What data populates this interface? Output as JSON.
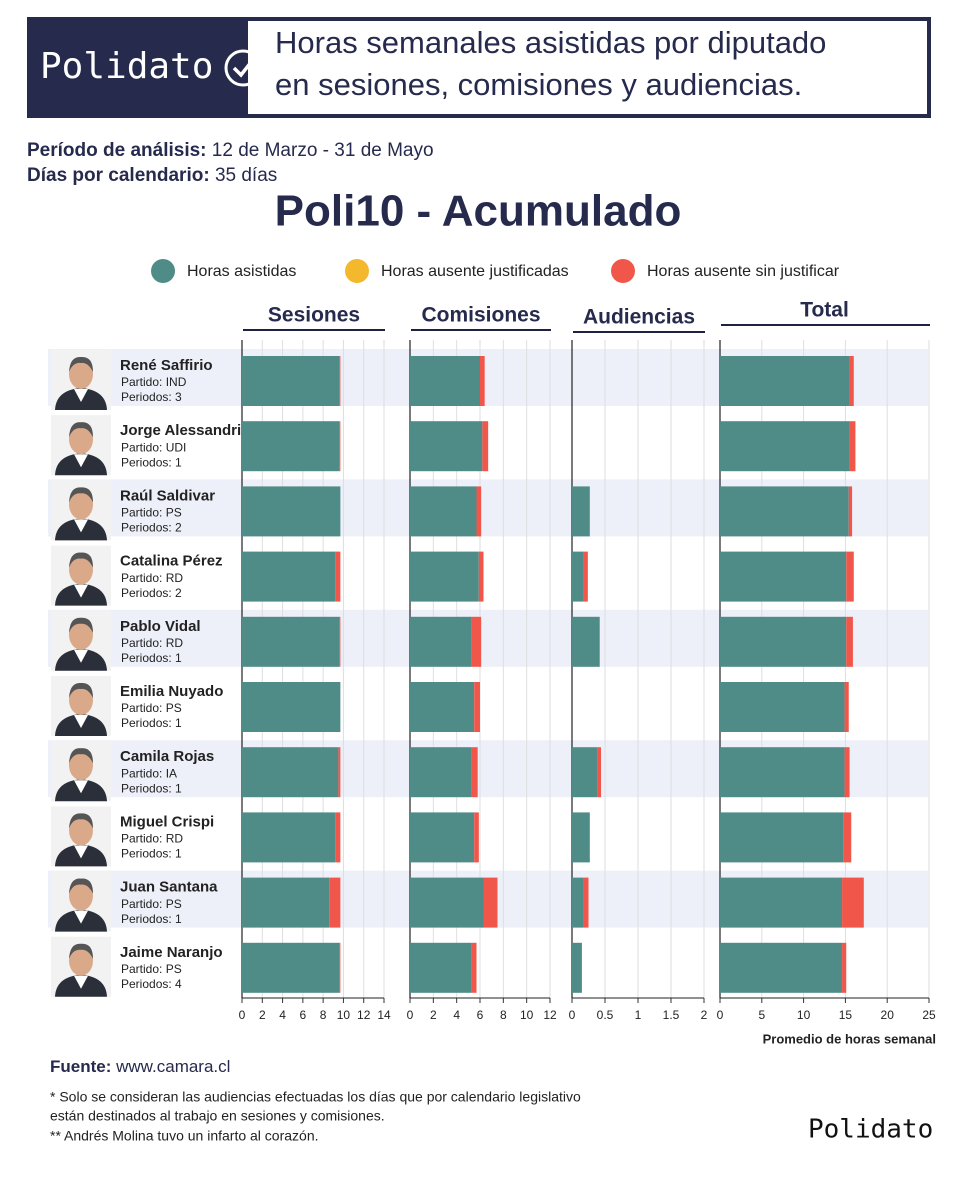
{
  "header": {
    "brand": "Polidato",
    "title_lines": [
      "Horas semanales asistidas por diputado",
      "en sesiones, comisiones y audiencias."
    ]
  },
  "period": {
    "label": "Período de análisis:",
    "value": "12 de Marzo - 31 de Mayo"
  },
  "days": {
    "label": "Días por calendario:",
    "value": "35 días"
  },
  "chart_data": {
    "type": "bar",
    "orientation": "horizontal",
    "stacked": true,
    "grid": true,
    "title": "Poli10 - Acumulado",
    "xlabel": "Promedio de horas semanal",
    "series": [
      {
        "name": "Horas asistidas",
        "color": "#4f8c87"
      },
      {
        "name": "Horas ausente justificadas",
        "color": "#f4b82c"
      },
      {
        "name": "Horas ausente sin justificar",
        "color": "#f1564b"
      }
    ],
    "categories": [
      "René Saffirio",
      "Jorge Alessandri",
      "Raúl Saldivar",
      "Catalina Pérez",
      "Pablo Vidal",
      "Emilia Nuyado",
      "Camila Rojas",
      "Miguel Crispi",
      "Juan Santana",
      "Jaime Naranjo"
    ],
    "panels": [
      {
        "title": "Sesiones",
        "xlim": [
          0,
          14
        ],
        "xticks": [
          0,
          2,
          4,
          6,
          8,
          10,
          12,
          14
        ],
        "series": [
          {
            "values": [
              9.6,
              9.6,
              9.7,
              9.2,
              9.6,
              9.7,
              9.5,
              9.2,
              8.6,
              9.6
            ]
          },
          {
            "values": [
              0,
              0,
              0,
              0,
              0,
              0,
              0,
              0,
              0,
              0
            ]
          },
          {
            "values": [
              0.1,
              0.1,
              0,
              0.5,
              0.1,
              0,
              0.2,
              0.5,
              1.1,
              0.1
            ]
          }
        ]
      },
      {
        "title": "Comisiones",
        "xlim": [
          0,
          12
        ],
        "xticks": [
          0,
          2,
          4,
          6,
          8,
          10,
          12
        ],
        "series": [
          {
            "values": [
              6.0,
              6.2,
              5.7,
              5.9,
              5.3,
              5.5,
              5.3,
              5.5,
              6.3,
              5.3
            ]
          },
          {
            "values": [
              0,
              0,
              0,
              0,
              0,
              0,
              0,
              0,
              0,
              0
            ]
          },
          {
            "values": [
              0.4,
              0.5,
              0.4,
              0.4,
              0.8,
              0.5,
              0.5,
              0.4,
              1.2,
              0.4
            ]
          }
        ]
      },
      {
        "title": "Audiencias",
        "xlim": [
          0,
          2
        ],
        "xticks": [
          0,
          0.5,
          1,
          1.5,
          2
        ],
        "series": [
          {
            "values": [
              0,
              0,
              0.27,
              0.18,
              0.42,
              0,
              0.39,
              0.27,
              0.18,
              0.15
            ]
          },
          {
            "values": [
              0,
              0,
              0,
              0,
              0,
              0,
              0,
              0,
              0,
              0
            ]
          },
          {
            "values": [
              0,
              0,
              0,
              0.06,
              0,
              0,
              0.05,
              0,
              0.07,
              0
            ]
          }
        ]
      },
      {
        "title": "Total",
        "xlim": [
          0,
          25
        ],
        "xticks": [
          0,
          5,
          10,
          15,
          20,
          25
        ],
        "series": [
          {
            "values": [
              15.5,
              15.5,
              15.4,
              15.1,
              15.1,
              14.9,
              14.9,
              14.8,
              14.6,
              14.6
            ]
          },
          {
            "values": [
              0,
              0,
              0,
              0,
              0,
              0,
              0,
              0,
              0,
              0
            ]
          },
          {
            "values": [
              0.5,
              0.7,
              0.4,
              0.9,
              0.8,
              0.5,
              0.6,
              0.9,
              2.6,
              0.5
            ]
          }
        ]
      }
    ]
  },
  "deputies": {
    "parties": [
      "Partido: IND",
      "Partido: UDI",
      "Partido: PS",
      "Partido: RD",
      "Partido: RD",
      "Partido: PS",
      "Partido: IA",
      "Partido: RD",
      "Partido: PS",
      "Partido: PS"
    ],
    "periods": [
      "Periodos: 3",
      "Periodos: 1",
      "Periodos: 2",
      "Periodos: 2",
      "Periodos: 1",
      "Periodos: 1",
      "Periodos: 1",
      "Periodos: 1",
      "Periodos: 1",
      "Periodos: 4"
    ]
  },
  "footer": {
    "source_label": "Fuente:",
    "source_value": "www.camara.cl",
    "notes": [
      "* Solo se consideran las audiencias efectuadas los días que por calendario legislativo",
      "están destinados al trabajo en sesiones y comisiones.",
      "** Andrés Molina tuvo un infarto al corazón."
    ],
    "brand": "Polidato"
  }
}
